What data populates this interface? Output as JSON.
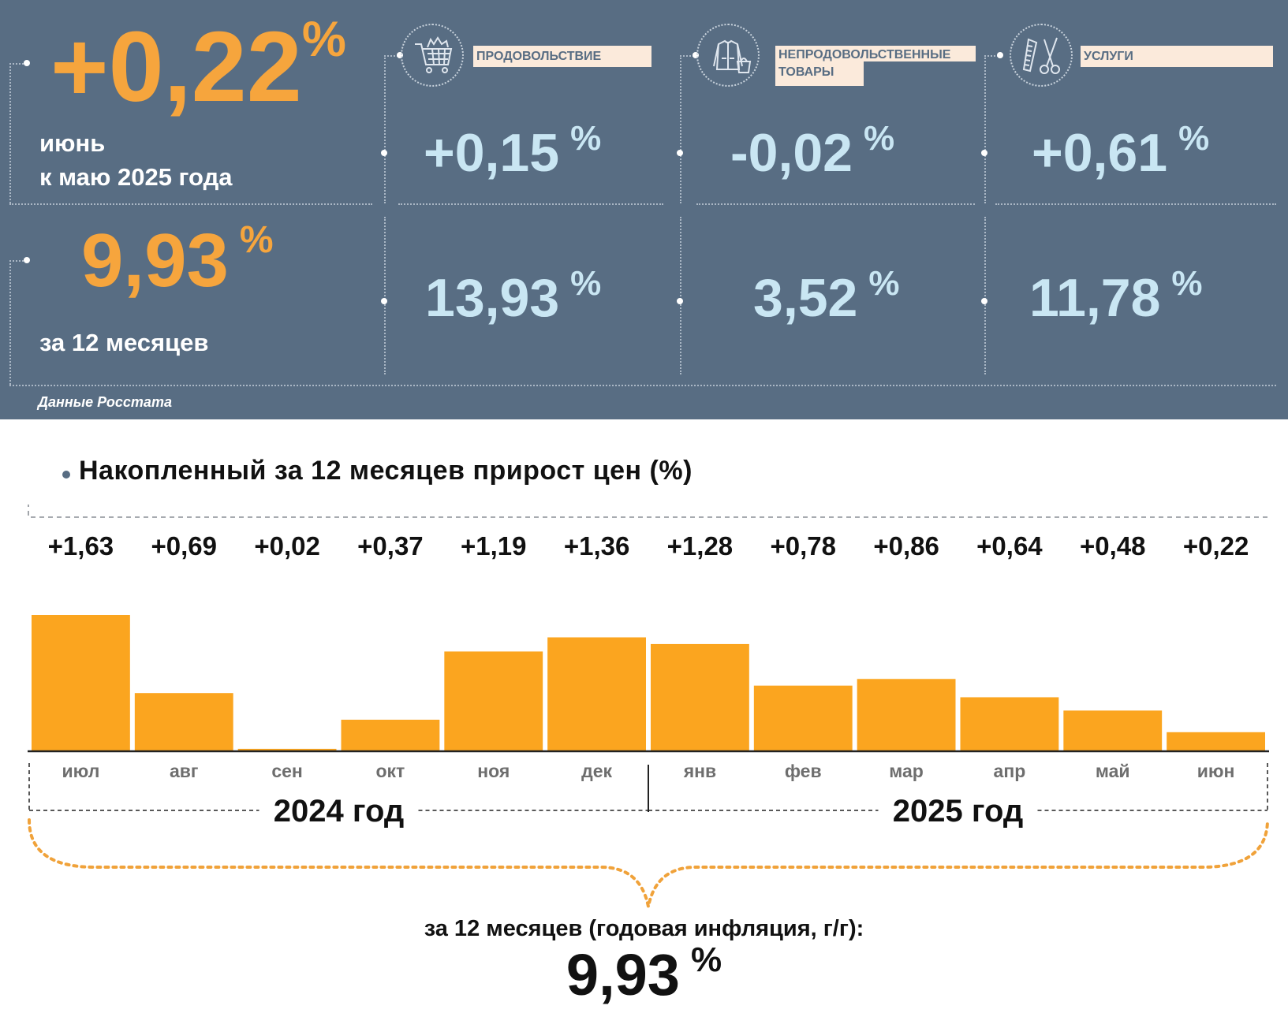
{
  "headline": {
    "month_value": "+0,22",
    "month_unit": "%",
    "month_label_line1": "июнь",
    "month_label_line2": "к маю 2025 года",
    "annual_value": "9,93",
    "annual_unit": "%",
    "annual_label": "за 12 месяцев"
  },
  "categories": [
    {
      "icon": "shopping-cart-icon",
      "label_line1": "ПРОДОВОЛЬСТВИЕ",
      "label_line2": "",
      "month_value": "+0,15",
      "annual_value": "13,93",
      "unit": "%"
    },
    {
      "icon": "clothing-icon",
      "label_line1": "НЕПРОДОВОЛЬСТВЕННЫЕ",
      "label_line2": "ТОВАРЫ",
      "month_value": "-0,02",
      "annual_value": "3,52",
      "unit": "%"
    },
    {
      "icon": "scissors-comb-icon",
      "label_line1": "УСЛУГИ",
      "label_line2": "",
      "month_value": "+0,61",
      "annual_value": "11,78",
      "unit": "%"
    }
  ],
  "source": "Данные Росстата",
  "colors": {
    "panel_bg": "#586d83",
    "accent_orange": "#f6a53d",
    "bar_fill": "#fba51f",
    "value_blue": "#c9e6f3",
    "label_bg": "#fbeadb"
  },
  "chart_data": {
    "type": "bar",
    "title": "Накопленный за 12 месяцев прирост цен (%)",
    "categories": [
      "июл",
      "авг",
      "сен",
      "окт",
      "ноя",
      "дек",
      "янв",
      "фев",
      "мар",
      "апр",
      "май",
      "июн"
    ],
    "values": [
      1.63,
      0.69,
      0.02,
      0.37,
      1.19,
      1.36,
      1.28,
      0.78,
      0.86,
      0.64,
      0.48,
      0.22
    ],
    "value_labels": [
      "+1,63",
      "+0,69",
      "+0,02",
      "+0,37",
      "+1,19",
      "+1,36",
      "+1,28",
      "+0,78",
      "+0,86",
      "+0,64",
      "+0,48",
      "+0,22"
    ],
    "year_groups": [
      {
        "label": "2024 год",
        "count": 6
      },
      {
        "label": "2025 год",
        "count": 6
      }
    ],
    "ylim": [
      0,
      1.63
    ],
    "grid": false,
    "legend": "none"
  },
  "summary": {
    "caption": "за 12 месяцев (годовая инфляция, г/г):",
    "value": "9,93",
    "unit": "%"
  }
}
